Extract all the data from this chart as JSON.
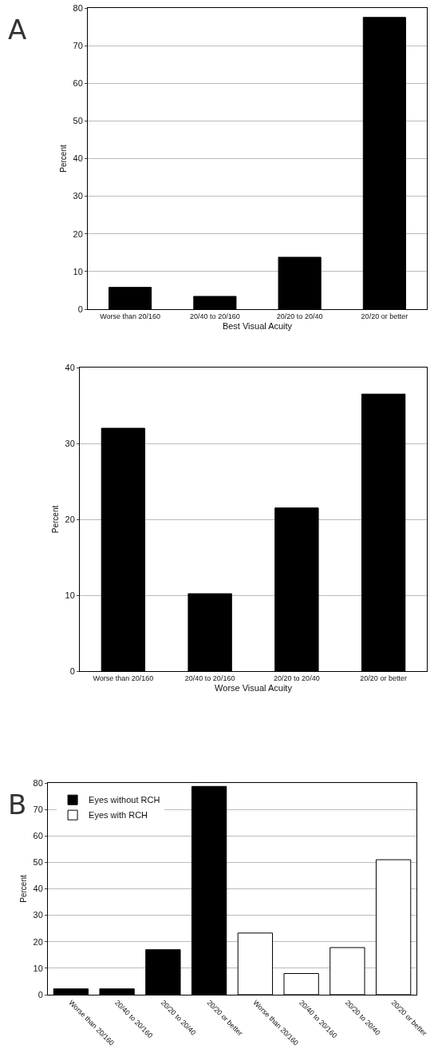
{
  "chart_data": [
    {
      "type": "bar",
      "annotations": [
        "A"
      ],
      "xlabel": "Best Visual Acuity",
      "ylabel": "Percent",
      "categories": [
        "Worse than 20/160",
        "20/40 to 20/160",
        "20/20 to 20/40",
        "20/20 or better"
      ],
      "values": [
        5.8,
        3.4,
        13.8,
        77.5
      ],
      "color": "#000000",
      "ylim": [
        0,
        80
      ],
      "yticks": [
        0,
        10,
        20,
        30,
        40,
        50,
        60,
        70,
        80
      ],
      "grid": "y"
    },
    {
      "type": "bar",
      "xlabel": "Worse Visual Acuity",
      "ylabel": "Percent",
      "categories": [
        "Worse than 20/160",
        "20/40 to 20/160",
        "20/20 to 20/40",
        "20/20 or better"
      ],
      "values": [
        32,
        10.2,
        21.5,
        36.5
      ],
      "color": "#000000",
      "ylim": [
        0,
        40
      ],
      "yticks": [
        0,
        10,
        20,
        30,
        40
      ],
      "grid": "y"
    },
    {
      "type": "bar",
      "annotations": [
        "B"
      ],
      "ylabel": "Percent",
      "categories": [
        "Worse than 20/160",
        "20/40 to 20/160",
        "20/20 to 20/40",
        "20/20 or better",
        "Worse than 20/160",
        "20/40 to 20/160",
        "20/20 to 20/40",
        "20/20 or better"
      ],
      "series": [
        {
          "name": "Eyes without RCH",
          "color": "#000000",
          "values": [
            2.2,
            2.2,
            17,
            78.7,
            null,
            null,
            null,
            null
          ]
        },
        {
          "name": "Eyes with RCH",
          "color": "#ffffff",
          "values": [
            null,
            null,
            null,
            null,
            23.3,
            8,
            17.8,
            51
          ]
        }
      ],
      "ylim": [
        0,
        80
      ],
      "yticks": [
        0,
        10,
        20,
        30,
        40,
        50,
        60,
        70,
        80
      ],
      "grid": "y",
      "legend": "top left"
    }
  ]
}
